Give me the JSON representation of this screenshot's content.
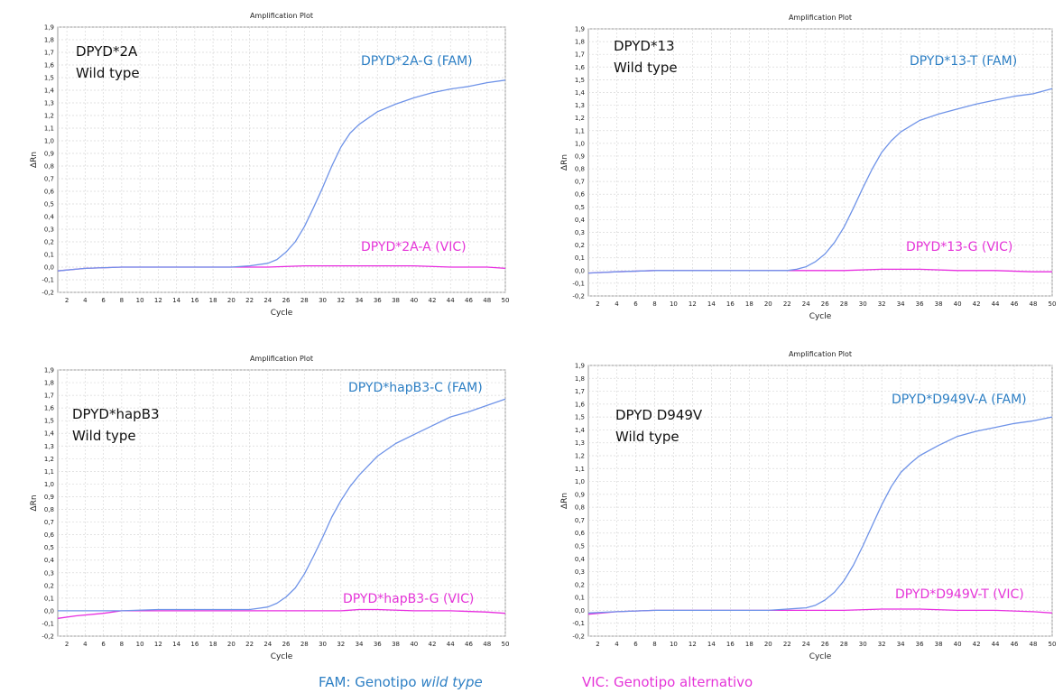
{
  "colors": {
    "fam": "#6f93e8",
    "vic": "#e82ee0",
    "fam_label": "#2d7fc4",
    "vic_label": "#e534d8",
    "grid": "#d9d9d9"
  },
  "chart_data": [
    {
      "type": "line",
      "title": "Amplification Plot",
      "xlabel": "Cycle",
      "ylabel": "ΔRn",
      "xlim": [
        1,
        50
      ],
      "ylim": [
        -0.2,
        1.9
      ],
      "xticks": [
        2,
        4,
        6,
        8,
        10,
        12,
        14,
        16,
        18,
        20,
        22,
        24,
        26,
        28,
        30,
        32,
        34,
        36,
        38,
        40,
        42,
        44,
        46,
        48,
        50
      ],
      "yticks": [
        "-0,2",
        "-0,1",
        "0,0",
        "0,1",
        "0,2",
        "0,3",
        "0,4",
        "0,5",
        "0,6",
        "0,7",
        "0,8",
        "0,9",
        "1,0",
        "1,1",
        "1,2",
        "1,3",
        "1,4",
        "1,5",
        "1,6",
        "1,7",
        "1,8",
        "1,9"
      ],
      "grid": true,
      "annotation": {
        "line1": "DPYD*2A",
        "line2": "Wild type"
      },
      "series": [
        {
          "name": "DPYD*2A-G (FAM)",
          "x": [
            1,
            4,
            8,
            12,
            16,
            20,
            22,
            24,
            25,
            26,
            27,
            28,
            29,
            30,
            31,
            32,
            33,
            34,
            36,
            38,
            40,
            42,
            44,
            46,
            48,
            50
          ],
          "values": [
            -0.03,
            -0.01,
            0.0,
            0.0,
            0.0,
            0.0,
            0.01,
            0.03,
            0.06,
            0.12,
            0.2,
            0.32,
            0.47,
            0.63,
            0.8,
            0.95,
            1.06,
            1.13,
            1.23,
            1.29,
            1.34,
            1.38,
            1.41,
            1.43,
            1.46,
            1.48
          ]
        },
        {
          "name": "DPYD*2A-A (VIC)",
          "x": [
            1,
            4,
            8,
            12,
            16,
            20,
            24,
            28,
            32,
            36,
            40,
            44,
            48,
            50
          ],
          "values": [
            -0.03,
            -0.01,
            0.0,
            0.0,
            0.0,
            0.0,
            0.0,
            0.01,
            0.01,
            0.01,
            0.01,
            0.0,
            0.0,
            -0.01
          ]
        }
      ]
    },
    {
      "type": "line",
      "title": "Amplification Plot",
      "xlabel": "Cycle",
      "ylabel": "ΔRn",
      "xlim": [
        1,
        50
      ],
      "ylim": [
        -0.2,
        1.9
      ],
      "xticks": [
        2,
        4,
        6,
        8,
        10,
        12,
        14,
        16,
        18,
        20,
        22,
        24,
        26,
        28,
        30,
        32,
        34,
        36,
        38,
        40,
        42,
        44,
        46,
        48,
        50
      ],
      "yticks": [
        "-0,2",
        "-0,1",
        "0,0",
        "0,1",
        "0,2",
        "0,3",
        "0,4",
        "0,5",
        "0,6",
        "0,7",
        "0,8",
        "0,9",
        "1,0",
        "1,1",
        "1,2",
        "1,3",
        "1,4",
        "1,5",
        "1,6",
        "1,7",
        "1,8",
        "1,9"
      ],
      "grid": true,
      "annotation": {
        "line1": "DPYD*13",
        "line2": "Wild type"
      },
      "series": [
        {
          "name": "DPYD*13-T (FAM)",
          "x": [
            1,
            4,
            8,
            12,
            16,
            20,
            22,
            23,
            24,
            25,
            26,
            27,
            28,
            29,
            30,
            31,
            32,
            33,
            34,
            36,
            38,
            40,
            42,
            44,
            46,
            48,
            50
          ],
          "values": [
            -0.02,
            -0.01,
            0.0,
            0.0,
            0.0,
            0.0,
            0.0,
            0.01,
            0.03,
            0.07,
            0.13,
            0.22,
            0.34,
            0.49,
            0.65,
            0.8,
            0.93,
            1.02,
            1.09,
            1.18,
            1.23,
            1.27,
            1.31,
            1.34,
            1.37,
            1.39,
            1.43
          ]
        },
        {
          "name": "DPYD*13-G (VIC)",
          "x": [
            1,
            4,
            8,
            12,
            16,
            20,
            24,
            28,
            32,
            36,
            40,
            44,
            48,
            50
          ],
          "values": [
            -0.02,
            -0.01,
            0.0,
            0.0,
            0.0,
            0.0,
            0.0,
            0.0,
            0.01,
            0.01,
            0.0,
            0.0,
            -0.01,
            -0.01
          ]
        }
      ]
    },
    {
      "type": "line",
      "title": "Amplification Plot",
      "xlabel": "Cycle",
      "ylabel": "ΔRn",
      "xlim": [
        1,
        50
      ],
      "ylim": [
        -0.2,
        1.9
      ],
      "xticks": [
        2,
        4,
        6,
        8,
        10,
        12,
        14,
        16,
        18,
        20,
        22,
        24,
        26,
        28,
        30,
        32,
        34,
        36,
        38,
        40,
        42,
        44,
        46,
        48,
        50
      ],
      "yticks": [
        "-0,2",
        "-0,1",
        "0,0",
        "0,1",
        "0,2",
        "0,3",
        "0,4",
        "0,5",
        "0,6",
        "0,7",
        "0,8",
        "0,9",
        "1,0",
        "1,1",
        "1,2",
        "1,3",
        "1,4",
        "1,5",
        "1,6",
        "1,7",
        "1,8",
        "1,9"
      ],
      "grid": true,
      "annotation": {
        "line1": "DPYD*hapB3",
        "line2": "Wild type"
      },
      "series": [
        {
          "name": "DPYD*hapB3-C (FAM)",
          "x": [
            1,
            4,
            8,
            12,
            16,
            20,
            22,
            23,
            24,
            25,
            26,
            27,
            28,
            29,
            30,
            31,
            32,
            33,
            34,
            36,
            38,
            40,
            42,
            44,
            46,
            48,
            50
          ],
          "values": [
            0.0,
            0.0,
            0.0,
            0.01,
            0.01,
            0.01,
            0.01,
            0.02,
            0.03,
            0.06,
            0.11,
            0.18,
            0.29,
            0.43,
            0.58,
            0.74,
            0.87,
            0.98,
            1.07,
            1.22,
            1.32,
            1.39,
            1.46,
            1.53,
            1.57,
            1.62,
            1.67
          ]
        },
        {
          "name": "DPYD*hapB3-G (VIC)",
          "x": [
            1,
            3,
            6,
            8,
            12,
            16,
            20,
            24,
            28,
            32,
            34,
            36,
            40,
            44,
            48,
            50
          ],
          "values": [
            -0.06,
            -0.04,
            -0.02,
            0.0,
            0.0,
            0.0,
            0.0,
            0.0,
            0.0,
            0.0,
            0.01,
            0.01,
            0.0,
            0.0,
            -0.01,
            -0.02
          ]
        }
      ]
    },
    {
      "type": "line",
      "title": "Amplification Plot",
      "xlabel": "Cycle",
      "ylabel": "ΔRn",
      "xlim": [
        1,
        50
      ],
      "ylim": [
        -0.2,
        1.9
      ],
      "xticks": [
        2,
        4,
        6,
        8,
        10,
        12,
        14,
        16,
        18,
        20,
        22,
        24,
        26,
        28,
        30,
        32,
        34,
        36,
        38,
        40,
        42,
        44,
        46,
        48,
        50
      ],
      "yticks": [
        "-0,2",
        "-0,1",
        "0,0",
        "0,1",
        "0,2",
        "0,3",
        "0,4",
        "0,5",
        "0,6",
        "0,7",
        "0,8",
        "0,9",
        "1,0",
        "1,1",
        "1,2",
        "1,3",
        "1,4",
        "1,5",
        "1,6",
        "1,7",
        "1,8",
        "1,9"
      ],
      "grid": true,
      "annotation": {
        "line1": "DPYD D949V",
        "line2": "Wild type"
      },
      "series": [
        {
          "name": "DPYD*D949V-A (FAM)",
          "x": [
            1,
            4,
            8,
            12,
            16,
            20,
            22,
            24,
            25,
            26,
            27,
            28,
            29,
            30,
            31,
            32,
            33,
            34,
            35,
            36,
            38,
            40,
            42,
            44,
            46,
            48,
            50
          ],
          "values": [
            -0.02,
            -0.01,
            0.0,
            0.0,
            0.0,
            0.0,
            0.01,
            0.02,
            0.04,
            0.08,
            0.14,
            0.23,
            0.35,
            0.5,
            0.66,
            0.82,
            0.96,
            1.07,
            1.14,
            1.2,
            1.28,
            1.35,
            1.39,
            1.42,
            1.45,
            1.47,
            1.5
          ]
        },
        {
          "name": "DPYD*D949V-T (VIC)",
          "x": [
            1,
            4,
            8,
            12,
            16,
            20,
            24,
            28,
            32,
            34,
            36,
            40,
            44,
            48,
            50
          ],
          "values": [
            -0.03,
            -0.01,
            0.0,
            0.0,
            0.0,
            0.0,
            0.0,
            0.0,
            0.01,
            0.01,
            0.01,
            0.0,
            0.0,
            -0.01,
            -0.02
          ]
        }
      ]
    }
  ],
  "legend": {
    "fam_prefix": "FAM: Genotipo ",
    "fam_italic": "wild type",
    "vic_text": "VIC: Genotipo alternativo"
  }
}
